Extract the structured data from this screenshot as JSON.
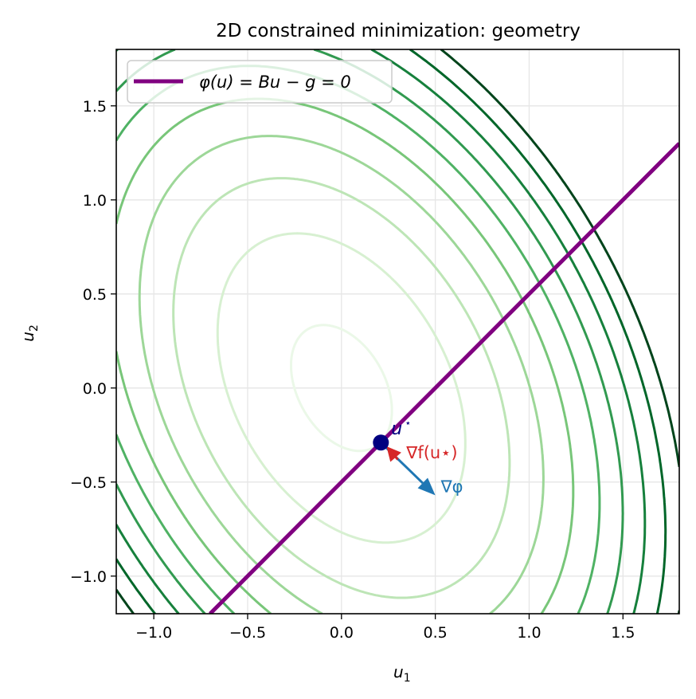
{
  "chart_data": {
    "type": "contour",
    "title": "2D constrained minimization: geometry",
    "xlabel": "u",
    "xlabel_sub": "1",
    "ylabel": "u",
    "ylabel_sub": "2",
    "xlim": [
      -1.2,
      1.8
    ],
    "ylim": [
      -1.2,
      1.8
    ],
    "xticks": [
      -1.0,
      -0.5,
      0.0,
      0.5,
      1.0,
      1.5
    ],
    "yticks": [
      -1.0,
      -0.5,
      0.0,
      0.5,
      1.0,
      1.5
    ],
    "xtick_labels": [
      "−1.0",
      "−0.5",
      "0.0",
      "0.5",
      "1.0",
      "1.5"
    ],
    "ytick_labels": [
      "−1.0",
      "−0.5",
      "0.0",
      "0.5",
      "1.0",
      "1.5"
    ],
    "grid": true,
    "objective": {
      "form": "quadratic u^T A u",
      "A": [
        [
          1.0,
          0.287
        ],
        [
          0.287,
          0.645
        ]
      ],
      "center": [
        0.0,
        0.0
      ],
      "levels": [
        0.063,
        0.38,
        0.7,
        1.01,
        1.33,
        1.65,
        1.96,
        2.28,
        2.6,
        2.92
      ],
      "colormap": "Greens"
    },
    "constraint": {
      "label": "φ(u) = Bu − g = 0",
      "B": [
        1,
        -1
      ],
      "g": 0.5,
      "color": "#800080"
    },
    "optimum": {
      "label": "u",
      "label_sup": "⋆",
      "point": [
        0.21,
        -0.29
      ],
      "color": "#000080"
    },
    "grad_f": {
      "label": "∇f(u⋆)",
      "tail": [
        0.3,
        -0.38
      ],
      "head": [
        0.24,
        -0.31
      ],
      "color": "#d62728"
    },
    "grad_phi": {
      "label": "∇φ",
      "tail": [
        0.21,
        -0.29
      ],
      "head": [
        0.5,
        -0.57
      ],
      "color": "#1f77b4"
    },
    "legend": {
      "placement": "upper-left",
      "entries": [
        "φ(u) = Bu − g = 0"
      ]
    }
  }
}
